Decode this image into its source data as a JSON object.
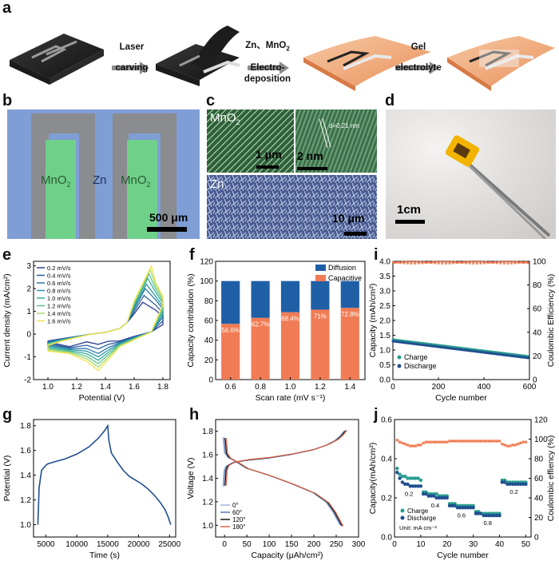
{
  "panel_labels": {
    "a": "a",
    "b": "b",
    "c": "c",
    "d": "d",
    "e": "e",
    "f": "f",
    "i": "i",
    "g": "g",
    "h": "h",
    "j": "j"
  },
  "panel_a": {
    "step1_line1": "Laser",
    "step1_line2": "carving",
    "step2_line1": "Zn、MnO",
    "step2_sub": "2",
    "step2_line2": "Electro-",
    "step2_line3": "deposition",
    "step3_line1": "Gel",
    "step3_line2": "electrolyte"
  },
  "panel_b": {
    "mno2_left": "MnO",
    "mno2_left_sub": "2",
    "zn": "Zn",
    "mno2_right": "MnO",
    "mno2_right_sub": "2",
    "scale": "500 μm"
  },
  "panel_c": {
    "mno2": "MnO",
    "mno2_sub": "2",
    "scale_1": "1 μm",
    "d_spacing": "d=0.21 nm",
    "scale_2": "2 nm",
    "zn": "Zn",
    "scale_3": "10 μm"
  },
  "panel_d": {
    "scale": "1cm"
  },
  "chart_e": {
    "type": "line",
    "xlabel": "Potential (V)",
    "ylabel": "Current density (mA/cm²)",
    "xlim": [
      0.9,
      1.85
    ],
    "ylim": [
      -2,
      3.2
    ],
    "xticks": [
      "1.0",
      "1.2",
      "1.4",
      "1.6",
      "1.8"
    ],
    "yticks": [
      "-2",
      "-1",
      "0",
      "1",
      "2",
      "3"
    ],
    "legend": [
      "0.2 mV/s",
      "0.4 mV/s",
      "0.6 mV/s",
      "0.8 mV/s",
      "1.0 mV/s",
      "1.2 mV/s",
      "1.4 mV/s",
      "1.6 mV/s"
    ],
    "colors": [
      "#2c3d8f",
      "#2b5c9e",
      "#2a7aa8",
      "#2d95a8",
      "#37ad9a",
      "#5ec28a",
      "#a2d86e",
      "#f2e34c"
    ],
    "peak_ox": [
      1.4,
      1.7,
      2.0,
      2.2,
      2.45,
      2.65,
      2.85,
      3.0
    ],
    "peak_red": [
      -0.45,
      -0.65,
      -0.85,
      -1.0,
      -1.15,
      -1.3,
      -1.45,
      -1.6
    ]
  },
  "chart_f": {
    "type": "bar",
    "xlabel": "Scan rate (mV s⁻¹)",
    "ylabel": "Capacity contribution (%)",
    "categories": [
      "0.6",
      "0.8",
      "1.0",
      "1.2",
      "1.4"
    ],
    "capacitive": [
      56.6,
      62.7,
      68.4,
      71,
      72.8
    ],
    "value_labels": [
      "56.6%",
      "62.7%",
      "68.4%",
      "71%",
      "72.8%"
    ],
    "legend": [
      "Diffusion",
      "Capacitive"
    ],
    "colors": {
      "diffusion": "#1f5fa6",
      "capacitive": "#f07b54"
    },
    "ylim": [
      0,
      120
    ],
    "yticks": [
      "0",
      "20",
      "40",
      "60",
      "80",
      "100",
      "120"
    ]
  },
  "chart_i": {
    "type": "scatter",
    "xlabel": "Cycle number",
    "ylabel_left": "Capacity (mAh/cm²)",
    "ylabel_right": "Coulombic Efficiency (%)",
    "xlim": [
      0,
      600
    ],
    "ylim_left": [
      0,
      4.0
    ],
    "ylim_right": [
      0,
      100
    ],
    "xticks": [
      "0",
      "200",
      "400",
      "600"
    ],
    "yticks_left": [
      "0.0",
      "0.5",
      "1.0",
      "1.5",
      "2.0",
      "2.5",
      "3.0",
      "3.5",
      "4.0"
    ],
    "yticks_right": [
      "0",
      "20",
      "40",
      "60",
      "80",
      "100"
    ],
    "legend": [
      "Charge",
      "Discharge"
    ],
    "capacity_start": 1.32,
    "capacity_end": 0.75,
    "ce": 99
  },
  "chart_g": {
    "type": "line",
    "xlabel": "Time (s)",
    "ylabel": "Potential (V)",
    "xlim": [
      3000,
      26000
    ],
    "ylim": [
      0.9,
      1.85
    ],
    "xticks": [
      "5000",
      "10000",
      "15000",
      "20000",
      "25000"
    ],
    "yticks": [
      "1.0",
      "1.2",
      "1.4",
      "1.6",
      "1.8"
    ],
    "x": [
      3700,
      3900,
      4300,
      5200,
      6500,
      8000,
      10000,
      12000,
      13500,
      14500,
      15000,
      15200,
      15600,
      16500,
      17500,
      18500,
      19500,
      20500,
      21500,
      22500,
      23500,
      24300,
      24800,
      25200
    ],
    "y": [
      1.0,
      1.3,
      1.44,
      1.49,
      1.51,
      1.53,
      1.57,
      1.63,
      1.7,
      1.76,
      1.8,
      1.68,
      1.58,
      1.51,
      1.44,
      1.39,
      1.36,
      1.33,
      1.29,
      1.24,
      1.18,
      1.12,
      1.06,
      1.0
    ]
  },
  "chart_h": {
    "type": "line",
    "xlabel": "Capacity (μAh/cm²)",
    "ylabel": "Voltage (V)",
    "xlim": [
      -20,
      300
    ],
    "ylim": [
      0.9,
      1.9
    ],
    "xticks": [
      "0",
      "50",
      "100",
      "150",
      "200",
      "250",
      "300"
    ],
    "yticks": [
      "1.0",
      "1.2",
      "1.4",
      "1.6",
      "1.8"
    ],
    "legend": [
      "0°",
      "60°",
      "120°",
      "180°"
    ],
    "colors": [
      "#9fb6d9",
      "#5e7bb0",
      "#1a1a1a",
      "#e0654a"
    ],
    "charge_x": [
      0,
      2,
      6,
      20,
      50,
      100,
      150,
      200,
      230,
      250,
      262,
      270
    ],
    "charge_y": [
      1.33,
      1.46,
      1.5,
      1.53,
      1.55,
      1.57,
      1.6,
      1.64,
      1.68,
      1.72,
      1.76,
      1.8
    ],
    "discharge_x": [
      0,
      3,
      10,
      25,
      50,
      100,
      150,
      200,
      230,
      245,
      255,
      262
    ],
    "discharge_y": [
      1.75,
      1.62,
      1.58,
      1.55,
      1.49,
      1.43,
      1.36,
      1.28,
      1.2,
      1.12,
      1.05,
      1.0
    ]
  },
  "chart_j": {
    "type": "scatter",
    "xlabel": "Cycle number",
    "ylabel_left": "Capacity(mAh/cm²)",
    "ylabel_right": "Coulombic effiency (%)",
    "xlim": [
      0,
      52
    ],
    "ylim_left": [
      0,
      0.6
    ],
    "ylim_right": [
      0,
      120
    ],
    "xticks": [
      "0",
      "10",
      "20",
      "30",
      "40",
      "50"
    ],
    "yticks_left": [
      "0.0",
      "0.2",
      "0.4",
      "0.6"
    ],
    "yticks_right": [
      "0",
      "20",
      "40",
      "60",
      "80",
      "100",
      "120"
    ],
    "legend": [
      "Charge",
      "Discharge"
    ],
    "unit": "Unit: mA cm⁻²",
    "rate_labels": [
      "0.2",
      "0.4",
      "0.6",
      "0.8",
      "0.2"
    ],
    "segments": [
      {
        "from": 1,
        "to": 10,
        "charge": [
          0.35,
          0.32,
          0.31,
          0.31,
          0.3,
          0.3,
          0.3,
          0.3,
          0.3,
          0.29
        ],
        "discharge": [
          0.33,
          0.3,
          0.28,
          0.27,
          0.27,
          0.26,
          0.26,
          0.26,
          0.26,
          0.26
        ]
      },
      {
        "from": 11,
        "to": 20,
        "charge": [
          0.23,
          0.23,
          0.22,
          0.22,
          0.22,
          0.22,
          0.21,
          0.21,
          0.21,
          0.21
        ],
        "discharge": [
          0.22,
          0.22,
          0.21,
          0.21,
          0.21,
          0.2,
          0.2,
          0.2,
          0.2,
          0.2
        ]
      },
      {
        "from": 21,
        "to": 30,
        "charge": [
          0.17,
          0.17,
          0.17,
          0.16,
          0.16,
          0.16,
          0.16,
          0.16,
          0.16,
          0.16
        ],
        "discharge": [
          0.16,
          0.16,
          0.16,
          0.15,
          0.15,
          0.15,
          0.15,
          0.15,
          0.15,
          0.15
        ]
      },
      {
        "from": 31,
        "to": 40,
        "charge": [
          0.13,
          0.13,
          0.12,
          0.12,
          0.12,
          0.12,
          0.12,
          0.12,
          0.12,
          0.12
        ],
        "discharge": [
          0.12,
          0.12,
          0.12,
          0.11,
          0.11,
          0.11,
          0.11,
          0.11,
          0.11,
          0.11
        ]
      },
      {
        "from": 41,
        "to": 50,
        "charge": [
          0.29,
          0.29,
          0.28,
          0.28,
          0.28,
          0.28,
          0.28,
          0.28,
          0.28,
          0.28
        ],
        "discharge": [
          0.28,
          0.28,
          0.27,
          0.27,
          0.27,
          0.27,
          0.27,
          0.27,
          0.27,
          0.27
        ]
      }
    ],
    "ce": [
      99,
      97,
      96,
      95,
      94,
      93,
      93,
      93,
      94,
      94,
      96,
      97,
      97,
      97,
      97,
      97,
      97,
      97,
      97,
      97,
      98,
      98,
      98,
      98,
      98,
      98,
      98,
      98,
      98,
      98,
      98,
      98,
      98,
      98,
      98,
      98,
      98,
      98,
      98,
      98,
      95,
      94,
      93,
      93,
      94,
      94,
      95,
      96,
      97,
      97
    ]
  }
}
